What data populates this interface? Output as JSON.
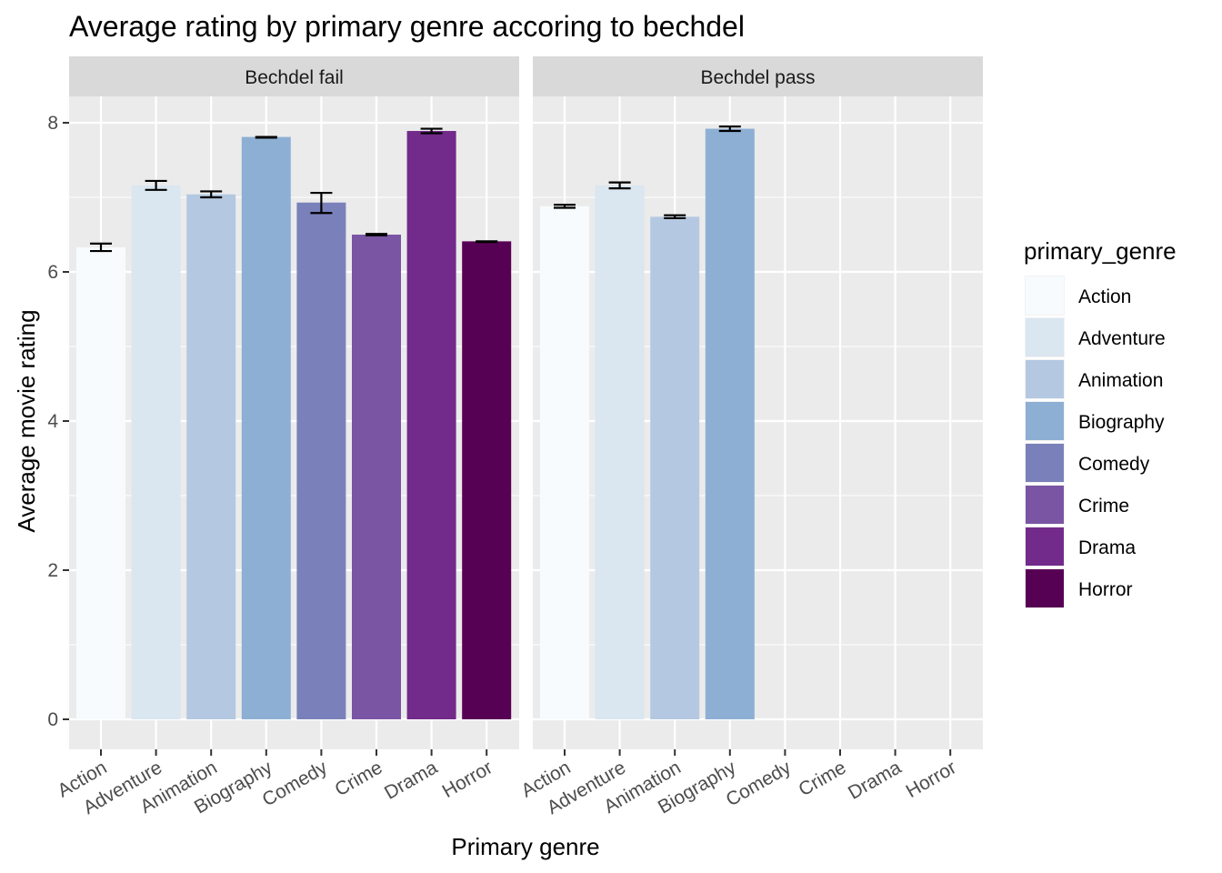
{
  "chart_data": {
    "type": "bar",
    "title": "Average rating by primary genre accoring to bechdel",
    "xlabel": "Primary genre",
    "ylabel": "Average movie rating",
    "ylim": [
      0,
      8.6
    ],
    "yticks": [
      0,
      2,
      4,
      6,
      8
    ],
    "grid": true,
    "categories": [
      "Action",
      "Adventure",
      "Animation",
      "Biography",
      "Comedy",
      "Crime",
      "Drama",
      "Horror"
    ],
    "colors": [
      "#F7FBFD",
      "#DAE6F0",
      "#B4C9E1",
      "#8DAFD4",
      "#7A81BA",
      "#7955A4",
      "#722B8A",
      "#570154"
    ],
    "facets": [
      {
        "label": "Bechdel fail",
        "values": [
          6.33,
          7.16,
          7.04,
          7.81,
          6.93,
          6.5,
          7.89,
          6.41
        ],
        "err_low": [
          6.28,
          7.1,
          7.0,
          7.8,
          6.79,
          6.49,
          7.86,
          6.4
        ],
        "err_high": [
          6.38,
          7.22,
          7.08,
          7.81,
          7.06,
          6.51,
          7.92,
          6.41
        ]
      },
      {
        "label": "Bechdel pass",
        "values": [
          6.88,
          7.16,
          6.74,
          7.92,
          null,
          null,
          null,
          null
        ],
        "err_low": [
          6.86,
          7.12,
          6.72,
          7.89,
          null,
          null,
          null,
          null
        ],
        "err_high": [
          6.9,
          7.2,
          6.76,
          7.95,
          null,
          null,
          null,
          null
        ]
      }
    ],
    "legend": {
      "title": "primary_genre",
      "position": "right",
      "items": [
        "Action",
        "Adventure",
        "Animation",
        "Biography",
        "Comedy",
        "Crime",
        "Drama",
        "Horror"
      ]
    }
  }
}
